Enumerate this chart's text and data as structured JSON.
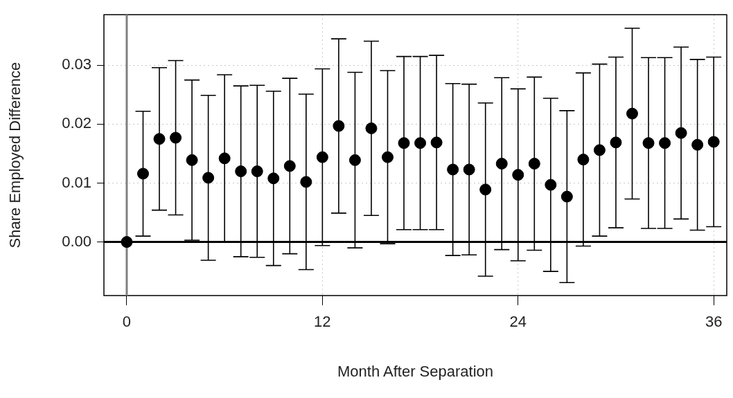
{
  "chart_data": {
    "type": "scatter",
    "xlabel": "Month After Separation",
    "ylabel": "Share Employed Difference",
    "x": [
      0,
      1,
      2,
      3,
      4,
      5,
      6,
      7,
      8,
      9,
      10,
      11,
      12,
      13,
      14,
      15,
      16,
      17,
      18,
      19,
      20,
      21,
      22,
      23,
      24,
      25,
      26,
      27,
      28,
      29,
      30,
      31,
      32,
      33,
      34,
      35,
      36
    ],
    "series": [
      {
        "color": "#000000",
        "values": [
          0,
          0.0116,
          0.0175,
          0.0177,
          0.0139,
          0.0109,
          0.0142,
          0.012,
          0.012,
          0.0108,
          0.0129,
          0.0102,
          0.0144,
          0.0197,
          0.0139,
          0.0193,
          0.0144,
          0.0168,
          0.0168,
          0.0169,
          0.0123,
          0.0123,
          0.0089,
          0.0133,
          0.0114,
          0.0133,
          0.0097,
          0.0077,
          0.014,
          0.0156,
          0.0169,
          0.0218,
          0.0168,
          0.0168,
          0.0185,
          0.0165,
          0.017
        ],
        "errors": [
          null,
          0.0106,
          0.0121,
          0.0131,
          0.0136,
          0.014,
          0.0142,
          0.0145,
          0.0146,
          0.0148,
          0.0149,
          0.0149,
          0.015,
          0.0148,
          0.0149,
          0.0148,
          0.0147,
          0.0147,
          0.0147,
          0.0148,
          0.0146,
          0.0145,
          0.0147,
          0.0146,
          0.0146,
          0.0147,
          0.0147,
          0.0146,
          0.0147,
          0.0146,
          0.0145,
          0.0145,
          0.0145,
          0.0145,
          0.0146,
          0.0145,
          0.0144
        ]
      }
    ],
    "xlim": [
      -1.4,
      36.8
    ],
    "ylim": [
      -0.0091,
      0.0386
    ],
    "xticks": [
      0,
      12,
      24,
      36
    ],
    "yticks": [
      {
        "value": 0,
        "label": "0.00"
      },
      {
        "value": 0.01,
        "label": "0.01"
      },
      {
        "value": 0.02,
        "label": "0.02"
      },
      {
        "value": 0.03,
        "label": "0.03"
      }
    ],
    "grid": true,
    "marker": "circle",
    "ref_lines": [
      {
        "axis": "x",
        "value": 0,
        "color": "#808080"
      },
      {
        "axis": "y",
        "value": 0,
        "color": "#000000"
      }
    ]
  }
}
